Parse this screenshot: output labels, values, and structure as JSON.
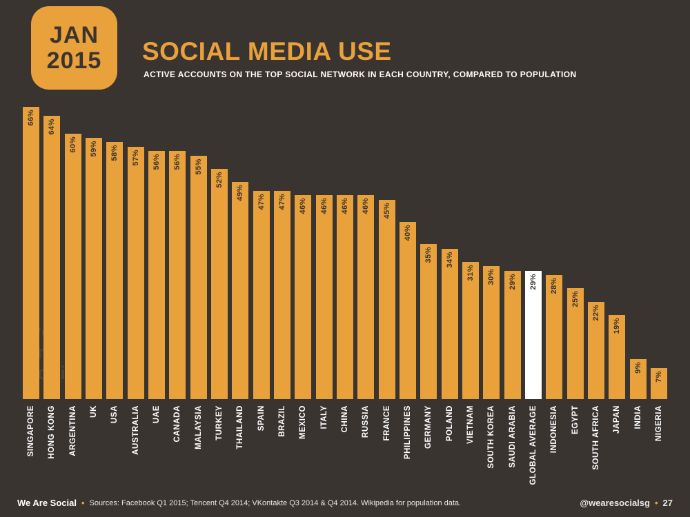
{
  "page": {
    "badge": {
      "line1": "JAN",
      "line2": "2015"
    },
    "title": "SOCIAL MEDIA USE",
    "subtitle": "ACTIVE ACCOUNTS ON THE TOP SOCIAL NETWORK IN EACH COUNTRY, COMPARED TO POPULATION",
    "watermark": {
      "line1": "we",
      "line2": "are",
      "line3": "social"
    },
    "footer": {
      "brand": "We Are Social",
      "separator": "•",
      "sources": "Sources: Facebook Q1 2015; Tencent Q4 2014; VKontakte Q3 2014 & Q4 2014. Wikipedia for population data.",
      "handle": "@wearesocialsg",
      "page_number": "27"
    },
    "colors": {
      "background": "#3a3431",
      "accent": "#e9a13b",
      "highlight_bar": "#ffffff",
      "bar_value_text": "#3a3431",
      "label_text": "#ffffff"
    }
  },
  "chart_data": {
    "type": "bar",
    "orientation": "vertical",
    "title": "SOCIAL MEDIA USE",
    "subtitle": "ACTIVE ACCOUNTS ON THE TOP SOCIAL NETWORK IN EACH COUNTRY, COMPARED TO POPULATION",
    "unit": "%",
    "ylim": [
      0,
      70
    ],
    "grid": false,
    "legend": false,
    "categories": [
      "SINGAPORE",
      "HONG KONG",
      "ARGENTINA",
      "UK",
      "USA",
      "AUSTRALIA",
      "UAE",
      "CANADA",
      "MALAYSIA",
      "TURKEY",
      "THAILAND",
      "SPAIN",
      "BRAZIL",
      "MEXICO",
      "ITALY",
      "CHINA",
      "RUSSIA",
      "FRANCE",
      "PHILIPPINES",
      "GERMANY",
      "POLAND",
      "VIETNAM",
      "SOUTH KOREA",
      "SAUDI ARABIA",
      "GLOBAL AVERAGE",
      "INDONESIA",
      "EGYPT",
      "SOUTH AFRICA",
      "JAPAN",
      "INDIA",
      "NIGERIA"
    ],
    "values": [
      66,
      64,
      60,
      59,
      58,
      57,
      56,
      56,
      55,
      52,
      49,
      47,
      47,
      46,
      46,
      46,
      46,
      45,
      40,
      35,
      34,
      31,
      30,
      29,
      29,
      28,
      25,
      22,
      19,
      9,
      7
    ],
    "highlight_index": 24,
    "highlight_category": "GLOBAL AVERAGE"
  }
}
